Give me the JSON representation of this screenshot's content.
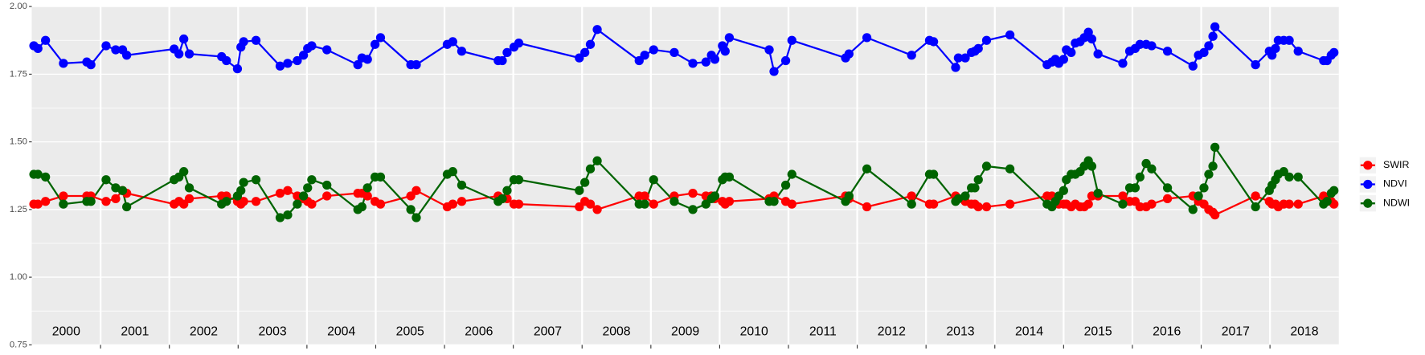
{
  "chart_data": {
    "type": "line",
    "x": [
      2000.03,
      2000.09,
      2000.2,
      2000.46,
      2000.8,
      2000.86,
      2001.08,
      2001.22,
      2001.32,
      2001.38,
      2002.07,
      2002.14,
      2002.21,
      2002.29,
      2002.76,
      2002.83,
      2002.99,
      2003.04,
      2003.08,
      2003.26,
      2003.61,
      2003.72,
      2003.86,
      2003.95,
      2004.01,
      2004.07,
      2004.29,
      2004.74,
      2004.8,
      2004.88,
      2004.99,
      2005.07,
      2005.51,
      2005.59,
      2006.04,
      2006.12,
      2006.25,
      2006.78,
      2006.84,
      2006.91,
      2007.01,
      2007.08,
      2007.96,
      2008.04,
      2008.12,
      2008.22,
      2008.83,
      2008.91,
      2009.04,
      2009.34,
      2009.61,
      2009.8,
      2009.88,
      2009.93,
      2010.04,
      2010.08,
      2010.14,
      2010.72,
      2010.79,
      2010.96,
      2011.05,
      2011.83,
      2011.88,
      2012.14,
      2012.79,
      2013.05,
      2013.11,
      2013.43,
      2013.47,
      2013.57,
      2013.66,
      2013.71,
      2013.76,
      2013.88,
      2014.22,
      2014.76,
      2014.83,
      2014.88,
      2014.93,
      2015.0,
      2015.04,
      2015.11,
      2015.17,
      2015.24,
      2015.3,
      2015.36,
      2015.41,
      2015.5,
      2015.86,
      2015.96,
      2016.04,
      2016.11,
      2016.2,
      2016.28,
      2016.51,
      2016.88,
      2016.96,
      2017.04,
      2017.11,
      2017.17,
      2017.2,
      2017.79,
      2017.99,
      2018.03,
      2018.08,
      2018.12,
      2018.2,
      2018.28,
      2018.41,
      2018.78,
      2018.83,
      2018.89,
      2018.93
    ],
    "series": [
      {
        "name": "SWIR",
        "color": "#ff0000",
        "values": [
          1.27,
          1.27,
          1.28,
          1.3,
          1.3,
          1.3,
          1.28,
          1.29,
          1.32,
          1.31,
          1.27,
          1.28,
          1.27,
          1.29,
          1.3,
          1.3,
          1.28,
          1.27,
          1.28,
          1.28,
          1.31,
          1.32,
          1.3,
          1.29,
          1.28,
          1.27,
          1.3,
          1.31,
          1.31,
          1.3,
          1.28,
          1.27,
          1.3,
          1.32,
          1.26,
          1.27,
          1.28,
          1.3,
          1.29,
          1.29,
          1.27,
          1.27,
          1.26,
          1.28,
          1.27,
          1.25,
          1.3,
          1.3,
          1.27,
          1.3,
          1.31,
          1.3,
          1.3,
          1.29,
          1.28,
          1.27,
          1.28,
          1.29,
          1.3,
          1.28,
          1.27,
          1.3,
          1.29,
          1.26,
          1.3,
          1.27,
          1.27,
          1.3,
          1.29,
          1.28,
          1.27,
          1.27,
          1.26,
          1.26,
          1.27,
          1.3,
          1.3,
          1.29,
          1.27,
          1.27,
          1.27,
          1.26,
          1.27,
          1.26,
          1.26,
          1.27,
          1.3,
          1.3,
          1.3,
          1.28,
          1.28,
          1.26,
          1.26,
          1.27,
          1.29,
          1.3,
          1.28,
          1.27,
          1.25,
          1.24,
          1.23,
          1.3,
          1.28,
          1.27,
          1.27,
          1.26,
          1.27,
          1.27,
          1.27,
          1.3,
          1.29,
          1.28,
          1.27
        ]
      },
      {
        "name": "NDVI",
        "color": "#0000ff",
        "values": [
          1.855,
          1.845,
          1.875,
          1.79,
          1.795,
          1.785,
          1.855,
          1.84,
          1.84,
          1.82,
          1.843,
          1.825,
          1.88,
          1.825,
          1.815,
          1.8,
          1.77,
          1.85,
          1.87,
          1.875,
          1.78,
          1.79,
          1.8,
          1.82,
          1.845,
          1.855,
          1.84,
          1.785,
          1.81,
          1.805,
          1.86,
          1.885,
          1.785,
          1.785,
          1.86,
          1.87,
          1.835,
          1.8,
          1.8,
          1.83,
          1.85,
          1.865,
          1.81,
          1.83,
          1.86,
          1.915,
          1.8,
          1.82,
          1.84,
          1.83,
          1.79,
          1.795,
          1.82,
          1.805,
          1.855,
          1.835,
          1.885,
          1.84,
          1.76,
          1.8,
          1.875,
          1.81,
          1.825,
          1.885,
          1.82,
          1.875,
          1.87,
          1.775,
          1.81,
          1.81,
          1.83,
          1.835,
          1.845,
          1.875,
          1.895,
          1.785,
          1.795,
          1.805,
          1.79,
          1.805,
          1.84,
          1.83,
          1.865,
          1.87,
          1.885,
          1.905,
          1.88,
          1.825,
          1.79,
          1.835,
          1.845,
          1.86,
          1.86,
          1.855,
          1.835,
          1.78,
          1.82,
          1.83,
          1.855,
          1.89,
          1.925,
          1.785,
          1.835,
          1.82,
          1.845,
          1.875,
          1.875,
          1.875,
          1.835,
          1.8,
          1.8,
          1.82,
          1.83
        ]
      },
      {
        "name": "NDWI",
        "color": "#006400",
        "values": [
          1.38,
          1.38,
          1.37,
          1.27,
          1.28,
          1.28,
          1.36,
          1.33,
          1.32,
          1.26,
          1.36,
          1.37,
          1.39,
          1.33,
          1.27,
          1.28,
          1.3,
          1.32,
          1.35,
          1.36,
          1.22,
          1.23,
          1.27,
          1.3,
          1.33,
          1.36,
          1.34,
          1.25,
          1.26,
          1.33,
          1.37,
          1.37,
          1.25,
          1.22,
          1.38,
          1.39,
          1.34,
          1.28,
          1.29,
          1.32,
          1.36,
          1.36,
          1.32,
          1.35,
          1.4,
          1.43,
          1.27,
          1.27,
          1.36,
          1.28,
          1.25,
          1.27,
          1.29,
          1.3,
          1.36,
          1.37,
          1.37,
          1.28,
          1.28,
          1.34,
          1.38,
          1.28,
          1.3,
          1.4,
          1.27,
          1.38,
          1.38,
          1.28,
          1.29,
          1.3,
          1.33,
          1.33,
          1.36,
          1.41,
          1.4,
          1.27,
          1.26,
          1.28,
          1.3,
          1.32,
          1.36,
          1.38,
          1.38,
          1.39,
          1.41,
          1.43,
          1.41,
          1.31,
          1.27,
          1.33,
          1.33,
          1.37,
          1.42,
          1.4,
          1.33,
          1.25,
          1.3,
          1.33,
          1.38,
          1.41,
          1.48,
          1.26,
          1.32,
          1.34,
          1.36,
          1.38,
          1.39,
          1.37,
          1.37,
          1.27,
          1.28,
          1.31,
          1.32
        ]
      }
    ],
    "xlim": [
      2000,
      2019
    ],
    "xticks": [
      {
        "value": 2000.5,
        "label": "2000"
      },
      {
        "value": 2001.5,
        "label": "2001"
      },
      {
        "value": 2002.5,
        "label": "2002"
      },
      {
        "value": 2003.5,
        "label": "2003"
      },
      {
        "value": 2004.5,
        "label": "2004"
      },
      {
        "value": 2005.5,
        "label": "2005"
      },
      {
        "value": 2006.5,
        "label": "2006"
      },
      {
        "value": 2007.5,
        "label": "2007"
      },
      {
        "value": 2008.5,
        "label": "2008"
      },
      {
        "value": 2009.5,
        "label": "2009"
      },
      {
        "value": 2010.5,
        "label": "2010"
      },
      {
        "value": 2011.5,
        "label": "2011"
      },
      {
        "value": 2012.5,
        "label": "2012"
      },
      {
        "value": 2013.5,
        "label": "2013"
      },
      {
        "value": 2014.5,
        "label": "2014"
      },
      {
        "value": 2015.5,
        "label": "2015"
      },
      {
        "value": 2016.5,
        "label": "2016"
      },
      {
        "value": 2017.5,
        "label": "2017"
      },
      {
        "value": 2018.5,
        "label": "2018"
      }
    ],
    "xbreaks": [
      2001,
      2002,
      2003,
      2004,
      2005,
      2006,
      2007,
      2008,
      2009,
      2010,
      2011,
      2012,
      2013,
      2014,
      2015,
      2016,
      2017,
      2018
    ],
    "ylim": [
      0.75,
      2
    ],
    "yticks": [
      0.75,
      {
        "value": 1,
        "label": "1.00"
      },
      1.25,
      {
        "value": 1.5,
        "label": "1.50"
      },
      1.75,
      {
        "value": 2,
        "label": "2.00"
      }
    ],
    "grid": true,
    "legend": "right"
  }
}
